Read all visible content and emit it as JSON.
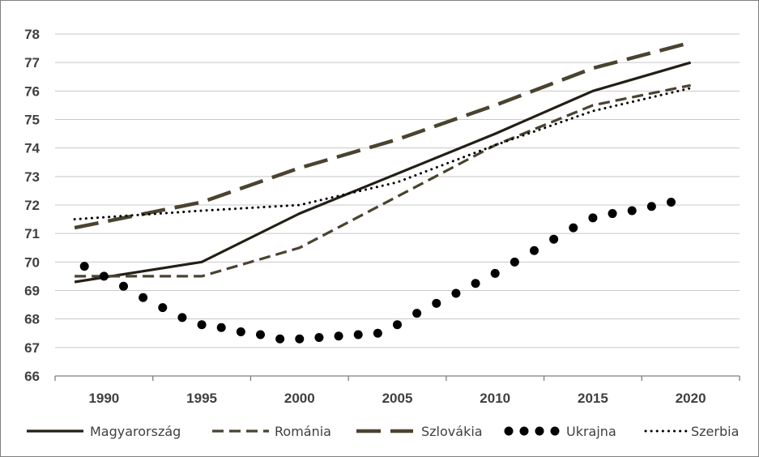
{
  "chart_data": {
    "type": "line",
    "title": "",
    "xlabel": "",
    "ylabel": "",
    "x": [
      1990,
      1991,
      1992,
      1993,
      1994,
      1995,
      1996,
      1997,
      1998,
      1999,
      2000,
      2001,
      2002,
      2003,
      2004,
      2005,
      2006,
      2007,
      2008,
      2009,
      2010,
      2011,
      2012,
      2013,
      2014,
      2015,
      2016,
      2017,
      2018,
      2019,
      2020
    ],
    "xlim": [
      1987.5,
      2022.5
    ],
    "ylim": [
      66,
      78
    ],
    "x_ticks": [
      "1990",
      "1995",
      "2000",
      "2005",
      "2010",
      "2015",
      "2020"
    ],
    "y_ticks": [
      "66",
      "67",
      "68",
      "69",
      "70",
      "71",
      "72",
      "73",
      "74",
      "75",
      "76",
      "77",
      "78"
    ],
    "grid": "horizontal",
    "legend_position": "bottom",
    "series": [
      {
        "name": "Magyarország",
        "style": "solid",
        "color": "#231f16",
        "points": [
          [
            1988.5,
            69.3
          ],
          [
            1995,
            70.0
          ],
          [
            2000,
            71.7
          ],
          [
            2005,
            73.1
          ],
          [
            2010,
            74.5
          ],
          [
            2015,
            76.0
          ],
          [
            2020,
            77.0
          ]
        ]
      },
      {
        "name": "Románia",
        "style": "dashed",
        "color": "#4a4330",
        "points": [
          [
            1988.5,
            69.5
          ],
          [
            1995,
            69.5
          ],
          [
            2000,
            70.5
          ],
          [
            2005,
            72.3
          ],
          [
            2010,
            74.1
          ],
          [
            2015,
            75.5
          ],
          [
            2020,
            76.2
          ]
        ]
      },
      {
        "name": "Szlovákia",
        "style": "long-dash",
        "color": "#4a4330",
        "points": [
          [
            1988.5,
            71.2
          ],
          [
            1995,
            72.1
          ],
          [
            2000,
            73.3
          ],
          [
            2005,
            74.3
          ],
          [
            2010,
            75.5
          ],
          [
            2015,
            76.8
          ],
          [
            2020,
            77.7
          ]
        ]
      },
      {
        "name": "Ukrajna",
        "style": "round-dot",
        "color": "#000000",
        "points": [
          [
            1989,
            69.85
          ],
          [
            1990,
            69.5
          ],
          [
            1991,
            69.15
          ],
          [
            1992,
            68.75
          ],
          [
            1993,
            68.4
          ],
          [
            1994,
            68.05
          ],
          [
            1995,
            67.8
          ],
          [
            1996,
            67.7
          ],
          [
            1997,
            67.55
          ],
          [
            1998,
            67.45
          ],
          [
            1999,
            67.3
          ],
          [
            2000,
            67.3
          ],
          [
            2001,
            67.35
          ],
          [
            2002,
            67.4
          ],
          [
            2003,
            67.45
          ],
          [
            2004,
            67.5
          ],
          [
            2005,
            67.8
          ],
          [
            2006,
            68.2
          ],
          [
            2007,
            68.55
          ],
          [
            2008,
            68.9
          ],
          [
            2009,
            69.25
          ],
          [
            2010,
            69.6
          ],
          [
            2011,
            70.0
          ],
          [
            2012,
            70.4
          ],
          [
            2013,
            70.8
          ],
          [
            2014,
            71.2
          ],
          [
            2015,
            71.55
          ],
          [
            2016,
            71.7
          ],
          [
            2017,
            71.8
          ],
          [
            2018,
            71.95
          ],
          [
            2019,
            72.1
          ]
        ]
      },
      {
        "name": "Szerbia",
        "style": "dotted",
        "color": "#000000",
        "points": [
          [
            1988.5,
            71.5
          ],
          [
            1995,
            71.8
          ],
          [
            2000,
            72.0
          ],
          [
            2005,
            72.8
          ],
          [
            2010,
            74.1
          ],
          [
            2015,
            75.3
          ],
          [
            2020,
            76.1
          ]
        ]
      }
    ]
  }
}
